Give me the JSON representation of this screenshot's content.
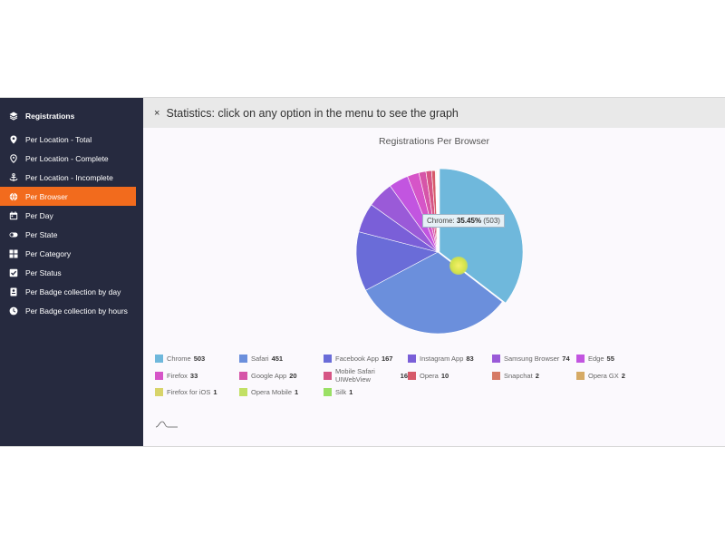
{
  "sidebar": {
    "header": "Registrations",
    "items": [
      {
        "label": "Per Location - Total",
        "icon": "location-pin-icon",
        "active": false
      },
      {
        "label": "Per Location - Complete",
        "icon": "location-outline-icon",
        "active": false
      },
      {
        "label": "Per Location - Incomplete",
        "icon": "anchor-icon",
        "active": false
      },
      {
        "label": "Per Browser",
        "icon": "globe-icon",
        "active": true
      },
      {
        "label": "Per Day",
        "icon": "calendar-icon",
        "active": false
      },
      {
        "label": "Per State",
        "icon": "toggle-icon",
        "active": false
      },
      {
        "label": "Per Category",
        "icon": "grid-icon",
        "active": false
      },
      {
        "label": "Per Status",
        "icon": "checkbox-icon",
        "active": false
      },
      {
        "label": "Per Badge collection by day",
        "icon": "badge-icon",
        "active": false
      },
      {
        "label": "Per Badge collection by hours",
        "icon": "clock-icon",
        "active": false
      }
    ]
  },
  "topbar": {
    "close": "×",
    "message": "Statistics: click on any option in the menu to see the graph"
  },
  "tooltip": {
    "label": "Chrome:",
    "percent": "35.45%",
    "count": "(503)"
  },
  "colors": {
    "sidebar_bg": "#262a3f",
    "active": "#f26b1d"
  },
  "chart_data": {
    "type": "pie",
    "title": "Registrations Per Browser",
    "series": [
      {
        "name": "Chrome",
        "value": 503,
        "color": "#6fb8dc"
      },
      {
        "name": "Safari",
        "value": 451,
        "color": "#6b8fdc"
      },
      {
        "name": "Facebook App",
        "value": 167,
        "color": "#6a6cd8"
      },
      {
        "name": "Instagram App",
        "value": 83,
        "color": "#7a5fd8"
      },
      {
        "name": "Samsung Browser",
        "value": 74,
        "color": "#9a5ad8"
      },
      {
        "name": "Edge",
        "value": 55,
        "color": "#c255e0"
      },
      {
        "name": "Firefox",
        "value": 33,
        "color": "#d655c8"
      },
      {
        "name": "Google App",
        "value": 20,
        "color": "#d655a8"
      },
      {
        "name": "Mobile Safari UIWebView",
        "value": 16,
        "color": "#d65585"
      },
      {
        "name": "Opera",
        "value": 10,
        "color": "#d65a6a"
      },
      {
        "name": "Snapchat",
        "value": 2,
        "color": "#d67a65"
      },
      {
        "name": "Opera GX",
        "value": 2,
        "color": "#d6aa65"
      },
      {
        "name": "Firefox for iOS",
        "value": 1,
        "color": "#d8d46a"
      },
      {
        "name": "Opera Mobile",
        "value": 1,
        "color": "#c2e065"
      },
      {
        "name": "Silk",
        "value": 1,
        "color": "#9ae065"
      }
    ]
  }
}
